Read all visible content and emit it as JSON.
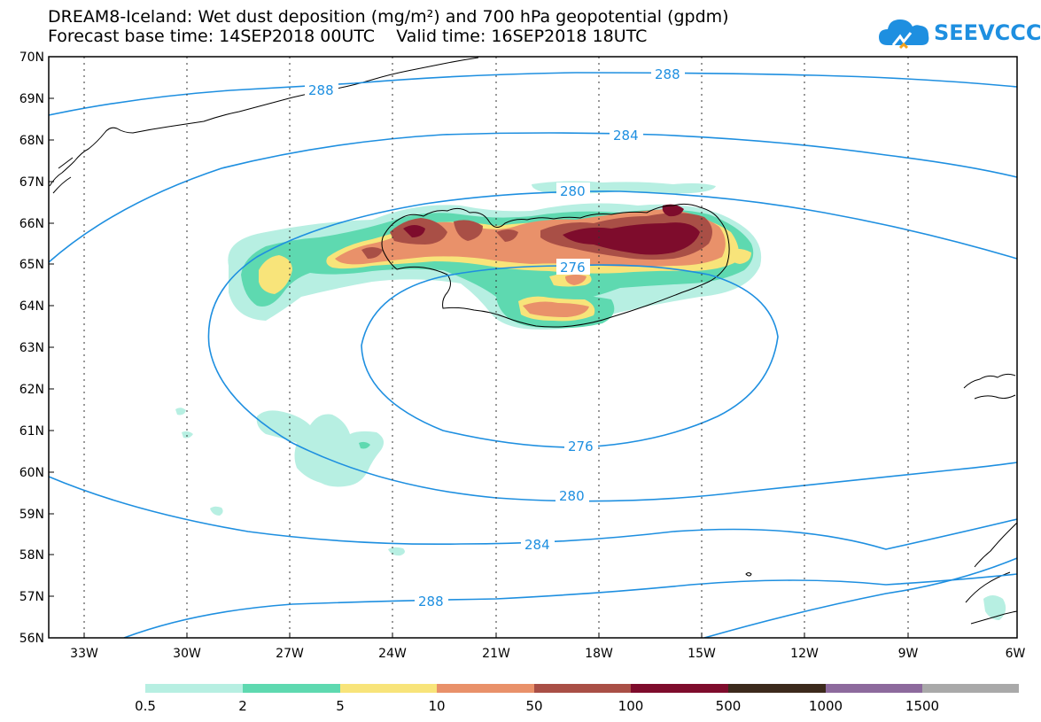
{
  "title": {
    "line1": "DREAM8-Iceland: Wet dust deposition (mg/m²) and 700 hPa geopotential (gpdm)",
    "line2": "Forecast base time: 14SEP2018 00UTC    Valid time: 16SEP2018 18UTC"
  },
  "logo": {
    "text": "SEEVCCC",
    "icon": "cloud-icon",
    "color": "#1e8fe0"
  },
  "map": {
    "lat_labels": [
      "70N",
      "69N",
      "68N",
      "67N",
      "66N",
      "65N",
      "64N",
      "63N",
      "62N",
      "61N",
      "60N",
      "59N",
      "58N",
      "57N",
      "56N"
    ],
    "lon_labels": [
      "33W",
      "30W",
      "27W",
      "24W",
      "21W",
      "18W",
      "15W",
      "12W",
      "9W",
      "6W"
    ],
    "contour_color": "#1e8fe0",
    "contour_labels": [
      {
        "value": "288",
        "key": "c288a"
      },
      {
        "value": "288",
        "key": "c288b"
      },
      {
        "value": "284",
        "key": "c284a"
      },
      {
        "value": "280",
        "key": "c280a"
      },
      {
        "value": "276",
        "key": "c276a"
      },
      {
        "value": "276",
        "key": "c276b"
      },
      {
        "value": "280",
        "key": "c280b"
      },
      {
        "value": "284",
        "key": "c284b"
      },
      {
        "value": "288",
        "key": "c288c"
      }
    ]
  },
  "legend": {
    "colors": [
      "#b7efe2",
      "#5ed9b0",
      "#f8e47a",
      "#e9916a",
      "#a94f46",
      "#7e0c2c",
      "#3c2a1c",
      "#8d6a9d",
      "#a9a9a9"
    ],
    "labels": [
      "0.5",
      "2",
      "5",
      "10",
      "50",
      "100",
      "500",
      "1000",
      "1500"
    ]
  }
}
